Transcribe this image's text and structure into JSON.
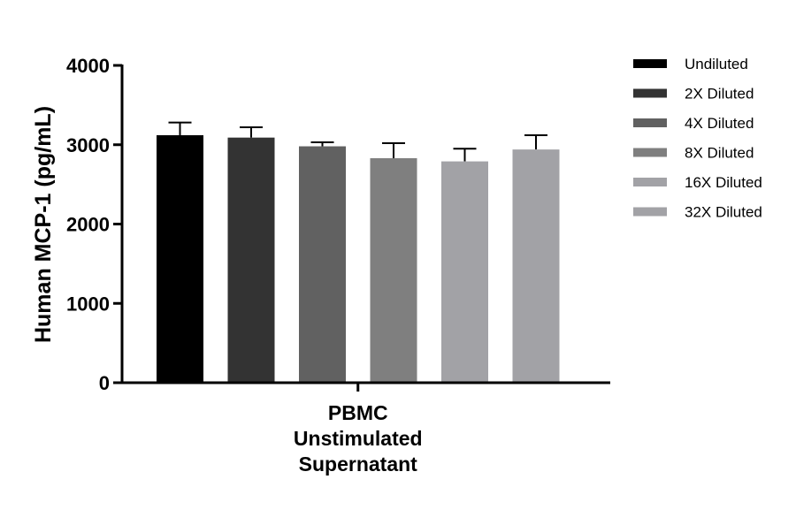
{
  "chart_data": {
    "type": "bar",
    "ylabel": "Human MCP-1 (pg/mL)",
    "xlabel": "",
    "ylim": [
      0,
      4000
    ],
    "yticks": [
      0,
      1000,
      2000,
      3000,
      4000
    ],
    "categories": [
      [
        "PBMC",
        "Unstimulated",
        "Supernatant"
      ]
    ],
    "series": [
      {
        "name": "Undiluted",
        "values": [
          3120
        ],
        "error": [
          160
        ],
        "color": "#000000"
      },
      {
        "name": "2X Diluted",
        "values": [
          3090
        ],
        "error": [
          130
        ],
        "color": "#333333"
      },
      {
        "name": "4X Diluted",
        "values": [
          2980
        ],
        "error": [
          50
        ],
        "color": "#616161"
      },
      {
        "name": "8X Diluted",
        "values": [
          2830
        ],
        "error": [
          190
        ],
        "color": "#7f7f7f"
      },
      {
        "name": "16X Diluted",
        "values": [
          2790
        ],
        "error": [
          160
        ],
        "color": "#a2a2a6"
      },
      {
        "name": "32X Diluted",
        "values": [
          2940
        ],
        "error": [
          180
        ],
        "color": "#a2a2a6"
      }
    ],
    "legend_position": "right",
    "grid": false
  }
}
